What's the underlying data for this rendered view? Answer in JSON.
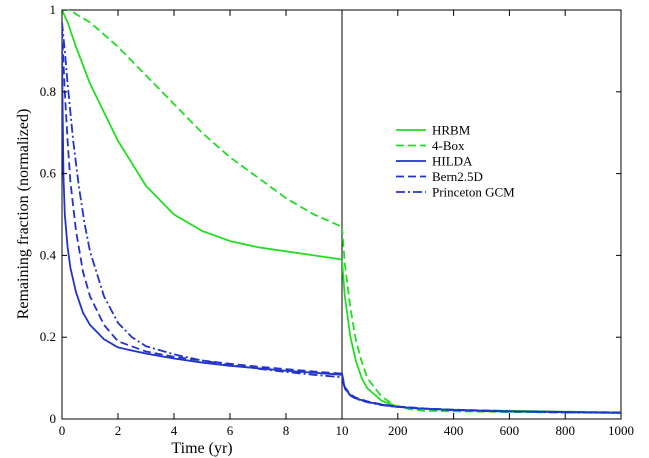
{
  "chart_data": {
    "type": "line",
    "title": "",
    "ylabel": "Remaining fraction (normalized)",
    "ylim": [
      0,
      1
    ],
    "y_ticks": [
      "0",
      "0.2",
      "0.4",
      "0.6",
      "0.8",
      "1"
    ],
    "grid": false,
    "legend_position": "right-middle",
    "panels": [
      {
        "name": "left",
        "xlabel": "Time (yr)",
        "xlim": [
          0,
          10
        ],
        "x_ticks": [
          "0",
          "2",
          "4",
          "6",
          "8",
          "10"
        ]
      },
      {
        "name": "right",
        "xlabel": "",
        "xlim": [
          10,
          1000
        ],
        "x_ticks": [
          "",
          "200",
          "400",
          "600",
          "800",
          "1000"
        ]
      }
    ],
    "series": [
      {
        "name": "HRBM",
        "color": "#22dd22",
        "dash": "solid",
        "left": {
          "x": [
            0,
            0.2,
            0.5,
            1,
            1.5,
            2,
            3,
            4,
            5,
            6,
            7,
            8,
            9,
            10
          ],
          "y": [
            1.0,
            0.97,
            0.91,
            0.82,
            0.75,
            0.68,
            0.57,
            0.5,
            0.46,
            0.435,
            0.42,
            0.41,
            0.4,
            0.39
          ]
        },
        "right": {
          "x": [
            10,
            20,
            40,
            60,
            80,
            100,
            150,
            200,
            250,
            300,
            400,
            500,
            600,
            800,
            1000
          ],
          "y": [
            0.39,
            0.3,
            0.2,
            0.14,
            0.1,
            0.075,
            0.045,
            0.032,
            0.027,
            0.025,
            0.023,
            0.021,
            0.02,
            0.018,
            0.016
          ]
        }
      },
      {
        "name": "4-Box",
        "color": "#22dd22",
        "dash": "dashed",
        "left": {
          "x": [
            0,
            0.3,
            0.5,
            1,
            2,
            3,
            4,
            5,
            6,
            7,
            8,
            9,
            10
          ],
          "y": [
            1.0,
            1.0,
            0.99,
            0.97,
            0.91,
            0.84,
            0.77,
            0.7,
            0.64,
            0.59,
            0.54,
            0.5,
            0.47
          ]
        },
        "right": {
          "x": [
            10,
            20,
            40,
            60,
            80,
            100,
            150,
            200,
            250,
            300,
            400,
            500,
            600,
            800,
            1000
          ],
          "y": [
            0.47,
            0.38,
            0.27,
            0.19,
            0.14,
            0.1,
            0.055,
            0.032,
            0.024,
            0.02,
            0.019,
            0.018,
            0.017,
            0.016,
            0.015
          ]
        }
      },
      {
        "name": "HILDA",
        "color": "#2233cc",
        "dash": "solid",
        "left": {
          "x": [
            0,
            0.05,
            0.1,
            0.2,
            0.3,
            0.5,
            0.75,
            1,
            1.5,
            2,
            3,
            4,
            5,
            6,
            7,
            8,
            9,
            10
          ],
          "y": [
            0.9,
            0.6,
            0.5,
            0.42,
            0.37,
            0.31,
            0.26,
            0.23,
            0.195,
            0.175,
            0.16,
            0.148,
            0.138,
            0.13,
            0.124,
            0.118,
            0.113,
            0.108
          ]
        },
        "right": {
          "x": [
            10,
            20,
            40,
            60,
            100,
            150,
            200,
            300,
            400,
            500,
            600,
            800,
            1000
          ],
          "y": [
            0.108,
            0.075,
            0.058,
            0.05,
            0.042,
            0.035,
            0.03,
            0.025,
            0.022,
            0.02,
            0.019,
            0.017,
            0.015
          ]
        }
      },
      {
        "name": "Bern2.5D",
        "color": "#2233cc",
        "dash": "dashed",
        "left": {
          "x": [
            0,
            0.1,
            0.2,
            0.3,
            0.5,
            0.75,
            1,
            1.5,
            2,
            3,
            4,
            5,
            6,
            7,
            8,
            9,
            10
          ],
          "y": [
            0.95,
            0.8,
            0.68,
            0.58,
            0.46,
            0.36,
            0.3,
            0.23,
            0.19,
            0.165,
            0.152,
            0.143,
            0.135,
            0.128,
            0.122,
            0.116,
            0.111
          ]
        },
        "right": {
          "x": [
            10,
            20,
            40,
            60,
            100,
            150,
            200,
            300,
            400,
            500,
            600,
            800,
            1000
          ],
          "y": [
            0.111,
            0.078,
            0.06,
            0.052,
            0.043,
            0.036,
            0.031,
            0.026,
            0.023,
            0.021,
            0.019,
            0.017,
            0.016
          ]
        }
      },
      {
        "name": "Princeton GCM",
        "color": "#2233cc",
        "dash": "dashdot",
        "left": {
          "x": [
            0,
            0.1,
            0.2,
            0.4,
            0.6,
            0.8,
            1,
            1.5,
            2,
            2.5,
            3,
            4,
            5,
            6,
            7,
            8,
            9,
            10
          ],
          "y": [
            0.97,
            0.9,
            0.82,
            0.68,
            0.57,
            0.48,
            0.41,
            0.3,
            0.235,
            0.2,
            0.178,
            0.158,
            0.143,
            0.132,
            0.123,
            0.115,
            0.108,
            0.102
          ]
        },
        "right": {
          "x": [
            10,
            20,
            40,
            60,
            100,
            150,
            200,
            300,
            400,
            500,
            600,
            800,
            1000
          ],
          "y": [
            0.102,
            0.074,
            0.057,
            0.049,
            0.041,
            0.034,
            0.03,
            0.025,
            0.022,
            0.02,
            0.018,
            0.016,
            0.015
          ]
        }
      }
    ]
  }
}
